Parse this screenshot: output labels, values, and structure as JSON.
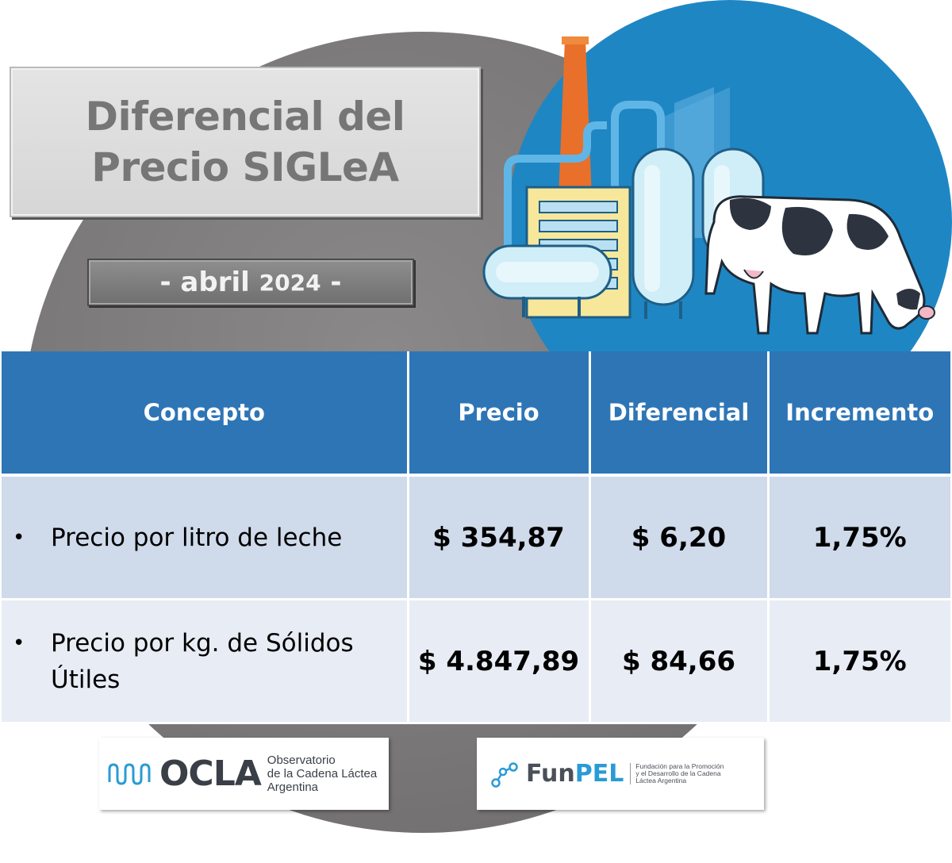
{
  "title": {
    "line1": "Diferencial del",
    "line2": "Precio SIGLeA"
  },
  "date": {
    "prefix": "- abril",
    "year": "2024",
    "suffix": "-"
  },
  "table": {
    "headers": [
      "Concepto",
      "Precio",
      "Diferencial",
      "Incremento"
    ],
    "rows": [
      {
        "bullet": "•",
        "concepto": "Precio por litro de leche",
        "precio": "$ 354,87",
        "diferencial": "$ 6,20",
        "incremento": "1,75%"
      },
      {
        "bullet": "•",
        "concepto": "Precio por kg. de Sólidos Útiles",
        "precio": "$ 4.847,89",
        "diferencial": "$ 84,66",
        "incremento": "1,75%"
      }
    ]
  },
  "logos": {
    "ocla": {
      "word": "OCLA",
      "line1": "Observatorio",
      "line2": "de la Cadena Láctea",
      "line3": "Argentina"
    },
    "funpel": {
      "word_a": "Fun",
      "word_b": "PEL",
      "line1": "Fundación para la Promoción",
      "line2": "y el Desarrollo de la Cadena",
      "line3": "Láctea Argentina"
    }
  },
  "colors": {
    "header_blue": "#2e75b6",
    "row1_bg": "#cfdaea",
    "row2_bg": "#e8ecf5",
    "illustration_blue": "#1f86c4",
    "background_circle": "#7a7878"
  },
  "icons": [
    "dairy-factory-illustration",
    "cow-illustration",
    "ocla-wave-icon",
    "funpel-network-icon"
  ]
}
